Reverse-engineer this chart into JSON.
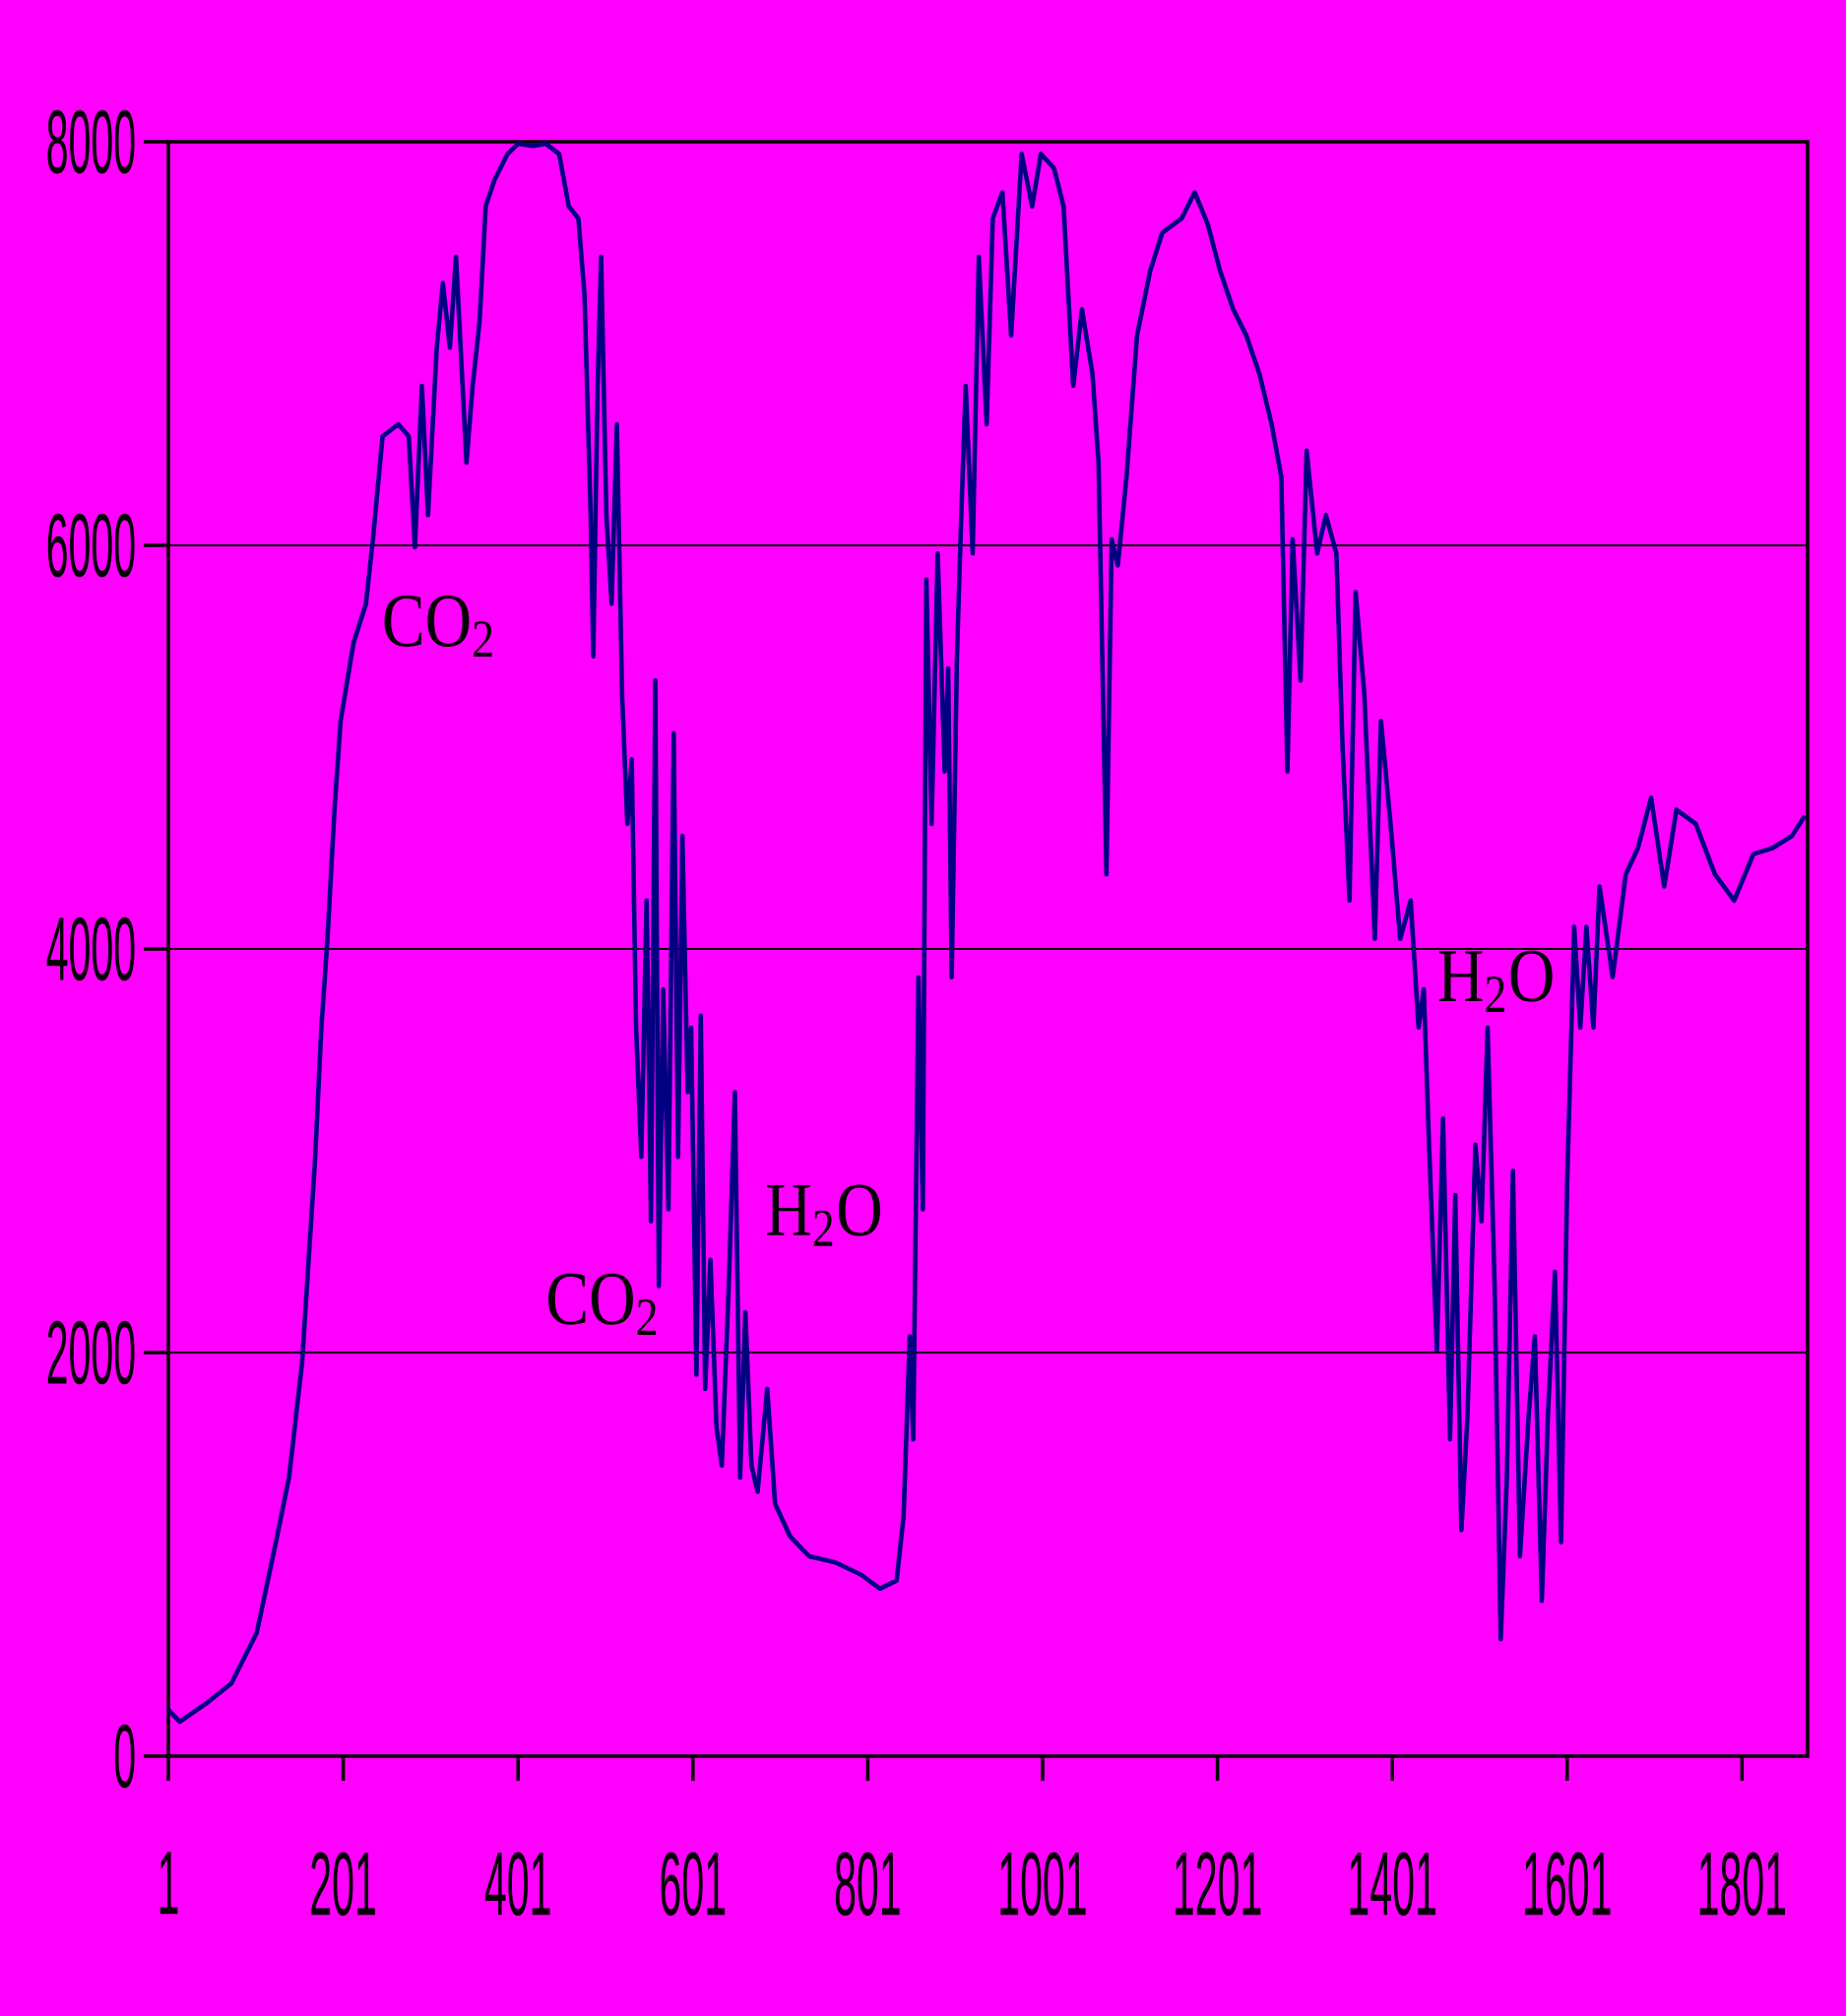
{
  "chart_data": {
    "type": "line",
    "color": "#000080",
    "xlim": [
      1,
      1876
    ],
    "ylim": [
      0,
      8000
    ],
    "xticks": [
      1,
      201,
      401,
      601,
      801,
      1001,
      1201,
      1401,
      1601,
      1801
    ],
    "yticks": [
      0,
      2000,
      4000,
      6000,
      8000
    ],
    "grid": "y",
    "marker": "none",
    "line_style": "solid",
    "annotations": [
      "CO$_{2}$",
      "CO$_{2}$",
      "H$_{2}$O",
      "H$_{2}$O"
    ],
    "x": [
      1,
      14,
      44,
      73,
      102,
      124,
      139,
      154,
      169,
      176,
      183,
      191,
      198,
      213,
      227,
      235,
      246,
      264,
      276,
      283,
      291,
      298,
      308,
      315,
      323,
      330,
      342,
      349,
      357,
      364,
      374,
      389,
      401,
      418,
      433,
      448,
      459,
      470,
      477,
      484,
      487,
      492,
      496,
      502,
      508,
      514,
      520,
      526,
      531,
      536,
      542,
      548,
      553,
      558,
      562,
      567,
      573,
      579,
      584,
      589,
      595,
      599,
      605,
      610,
      615,
      621,
      628,
      634,
      642,
      649,
      655,
      661,
      668,
      675,
      686,
      695,
      712,
      734,
      764,
      793,
      815,
      834,
      842,
      849,
      853,
      859,
      864,
      868,
      874,
      881,
      889,
      893,
      897,
      903,
      908,
      913,
      921,
      928,
      937,
      944,
      955,
      965,
      977,
      989,
      999,
      1014,
      1025,
      1036,
      1046,
      1058,
      1065,
      1074,
      1080,
      1087,
      1097,
      1109,
      1124,
      1138,
      1160,
      1175,
      1190,
      1204,
      1219,
      1234,
      1249,
      1263,
      1274,
      1281,
      1287,
      1296,
      1303,
      1315,
      1325,
      1337,
      1344,
      1352,
      1359,
      1369,
      1381,
      1388,
      1399,
      1410,
      1422,
      1431,
      1437,
      1443,
      1452,
      1459,
      1467,
      1473,
      1480,
      1487,
      1496,
      1503,
      1510,
      1518,
      1525,
      1532,
      1539,
      1547,
      1557,
      1564,
      1572,
      1579,
      1587,
      1594,
      1601,
      1609,
      1616,
      1623,
      1631,
      1638,
      1653,
      1668,
      1682,
      1697,
      1712,
      1726,
      1748,
      1770,
      1792,
      1814,
      1836,
      1858,
      1873
    ],
    "values": [
      230,
      170,
      260,
      360,
      610,
      1060,
      1380,
      1950,
      2970,
      3610,
      4050,
      4690,
      5130,
      5520,
      5710,
      6030,
      6540,
      6600,
      6540,
      5990,
      6790,
      6150,
      6980,
      7300,
      6980,
      7430,
      6410,
      6790,
      7110,
      7680,
      7810,
      7940,
      7990,
      7980,
      7990,
      7940,
      7680,
      7620,
      7240,
      6150,
      5450,
      6790,
      7430,
      6150,
      5710,
      6600,
      5260,
      4620,
      4940,
      3610,
      2970,
      4240,
      2650,
      5330,
      2330,
      3800,
      2710,
      5070,
      2970,
      4560,
      3290,
      3610,
      1890,
      3670,
      1820,
      2460,
      1630,
      1440,
      2330,
      3290,
      1380,
      2200,
      1440,
      1310,
      1820,
      1250,
      1090,
      990,
      960,
      900,
      830,
      870,
      1190,
      2080,
      1570,
      3860,
      2710,
      5830,
      4620,
      5960,
      4880,
      5390,
      3860,
      5450,
      6150,
      6790,
      5960,
      7430,
      6600,
      7620,
      7750,
      7040,
      7940,
      7680,
      7940,
      7870,
      7680,
      6790,
      7170,
      6850,
      6410,
      4370,
      6030,
      5900,
      6340,
      7040,
      7360,
      7550,
      7620,
      7750,
      7590,
      7360,
      7170,
      7040,
      6850,
      6600,
      6340,
      4880,
      6030,
      5330,
      6470,
      5960,
      6150,
      5960,
      5010,
      4240,
      5770,
      5260,
      4050,
      5130,
      4620,
      4050,
      4240,
      3610,
      3800,
      3030,
      2010,
      3160,
      1570,
      2780,
      1120,
      1690,
      3030,
      2650,
      3610,
      2330,
      580,
      1380,
      2900,
      990,
      1690,
      2080,
      770,
      1690,
      2400,
      1060,
      2840,
      4110,
      3610,
      4110,
      3610,
      4310,
      3860,
      4370,
      4500,
      4750,
      4310,
      4690,
      4620,
      4370,
      4240,
      4470,
      4500,
      4560,
      4660
    ]
  }
}
